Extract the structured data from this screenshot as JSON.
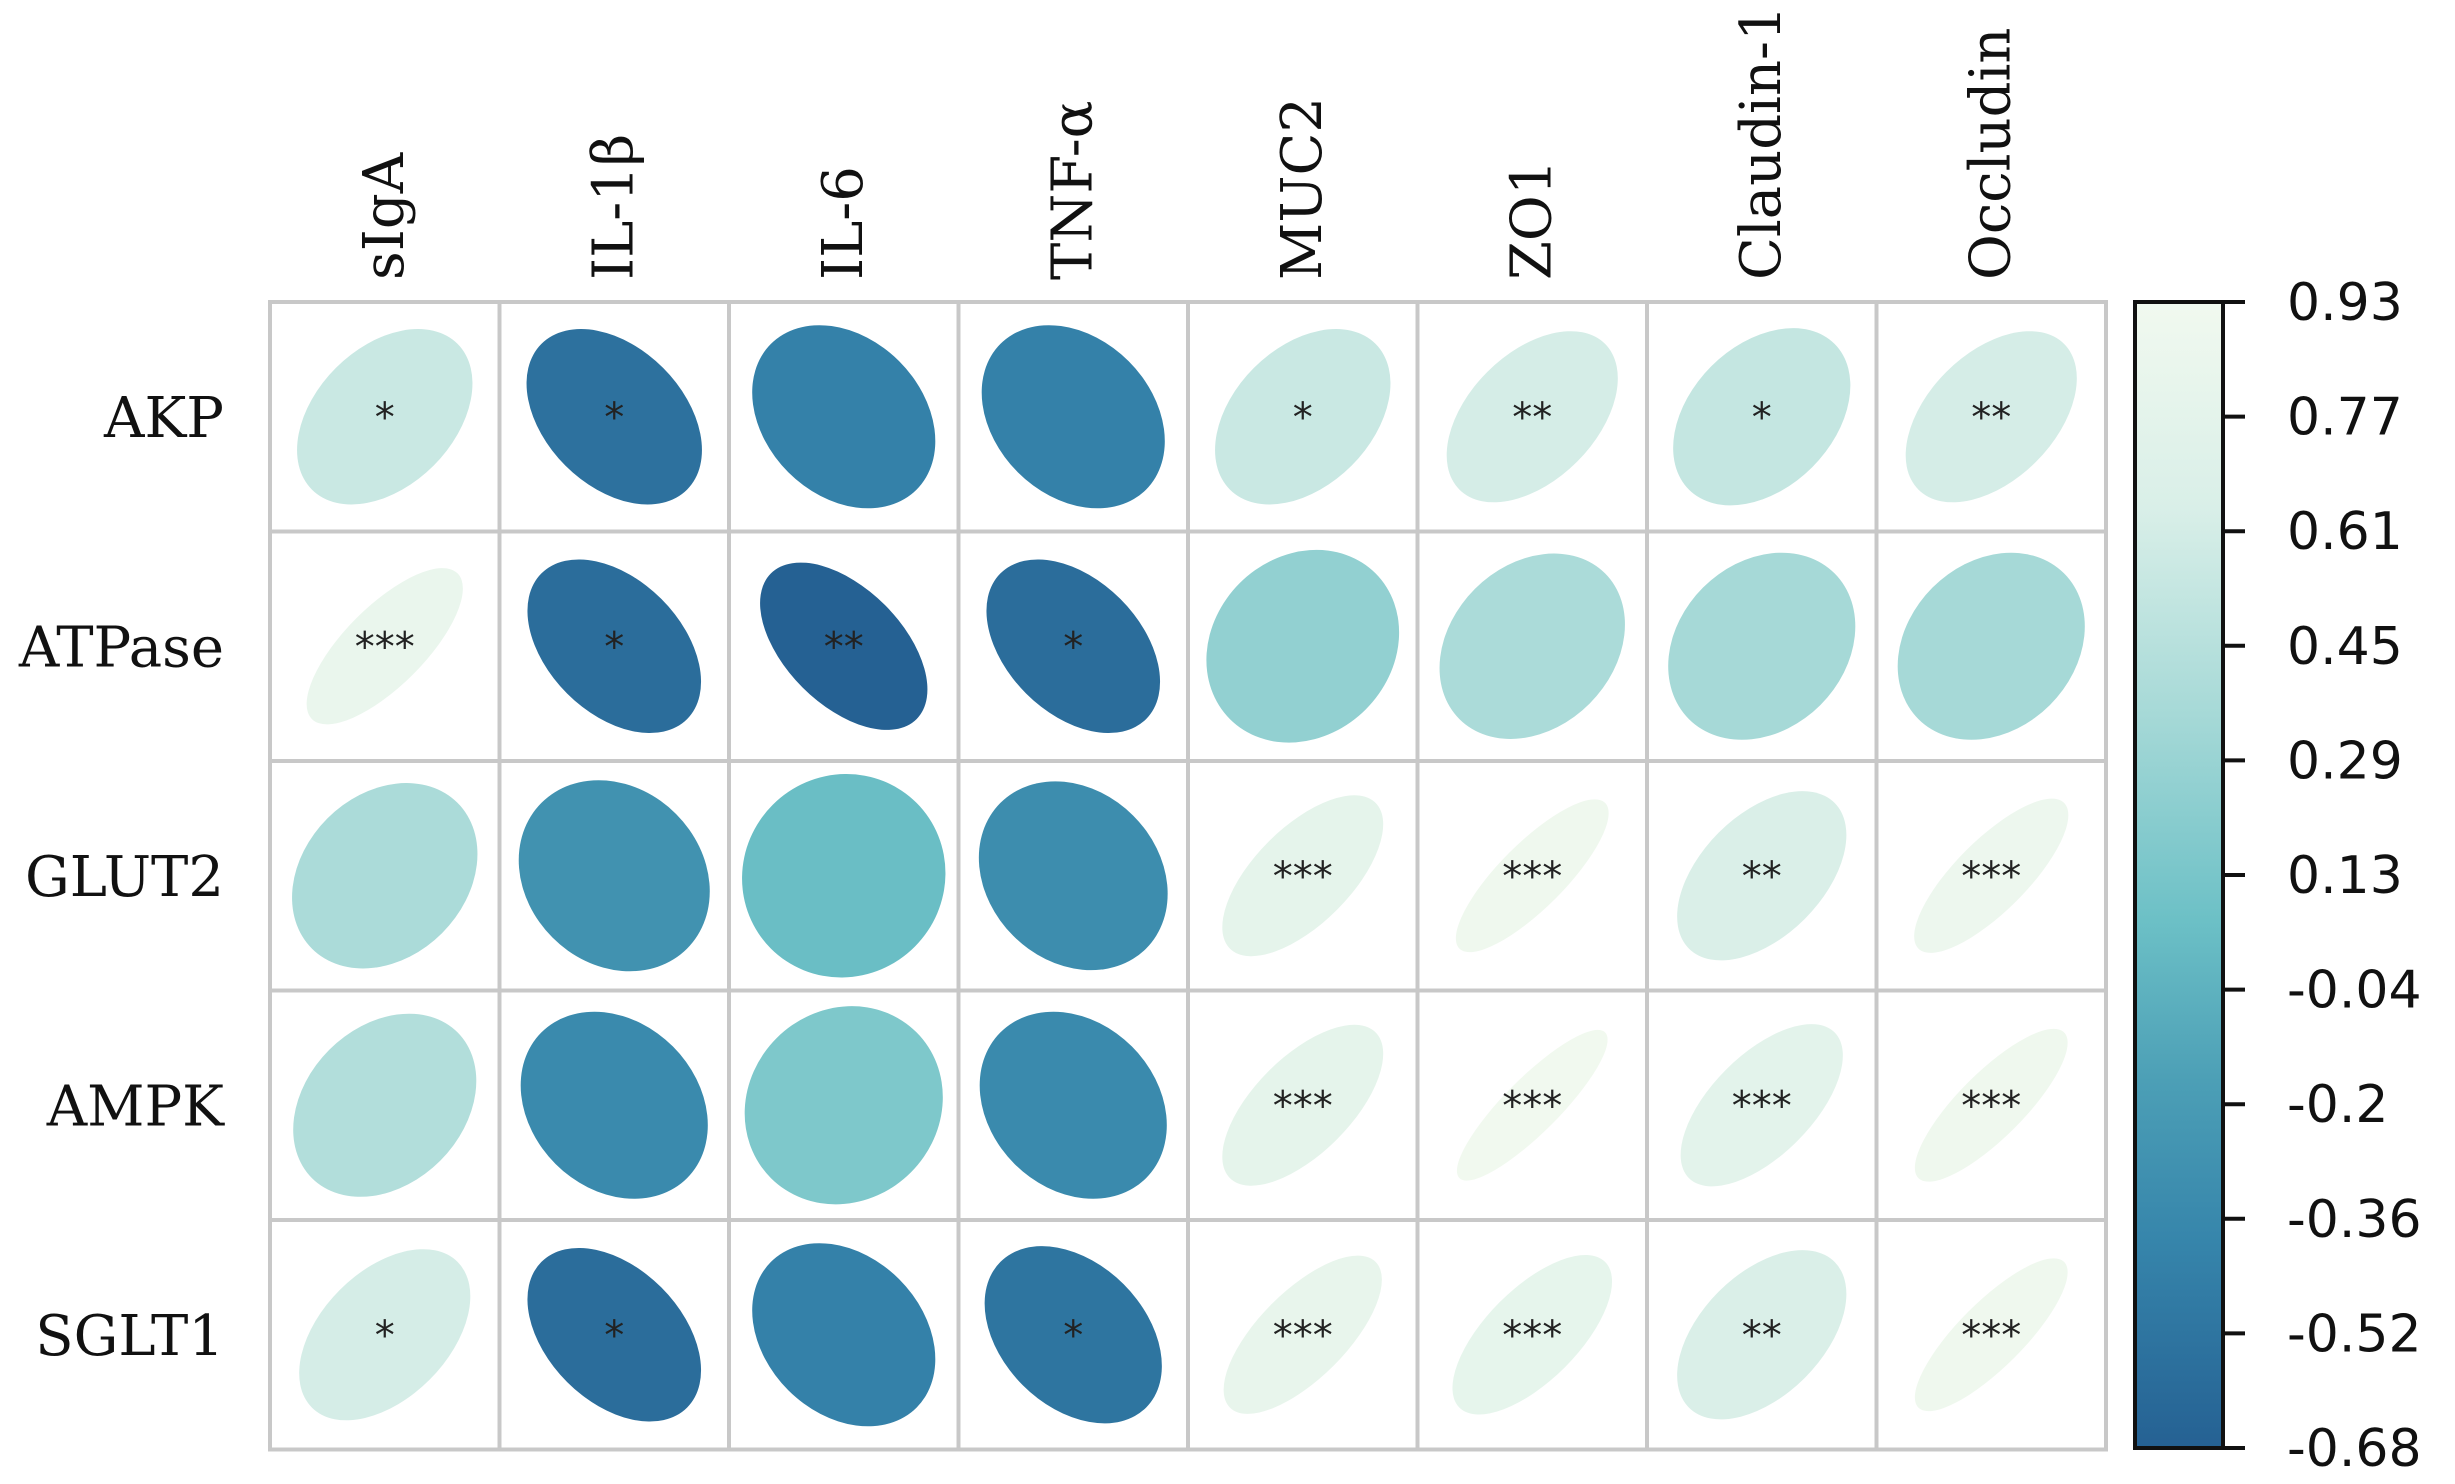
{
  "chart_data": {
    "type": "heatmap",
    "style": "correlation-ellipse",
    "columns": [
      "sIgA",
      "IL-1β",
      "IL-6",
      "TNF-α",
      "MUC2",
      "ZO1",
      "Claudin-1",
      "Occludin"
    ],
    "rows": [
      "AKP",
      "ATPase",
      "GLUT2",
      "AMPK",
      "SGLT1"
    ],
    "values": [
      [
        0.55,
        -0.55,
        -0.42,
        -0.42,
        0.55,
        0.62,
        0.52,
        0.62
      ],
      [
        0.85,
        -0.58,
        -0.68,
        -0.58,
        0.25,
        0.38,
        0.35,
        0.35
      ],
      [
        0.38,
        -0.28,
        0.05,
        -0.32,
        0.78,
        0.9,
        0.65,
        0.88
      ],
      [
        0.42,
        -0.35,
        0.15,
        -0.35,
        0.78,
        0.93,
        0.76,
        0.9
      ],
      [
        0.62,
        -0.58,
        -0.42,
        -0.52,
        0.82,
        0.8,
        0.65,
        0.9
      ]
    ],
    "significance": [
      [
        "*",
        "*",
        "",
        "",
        "*",
        "**",
        "*",
        "**"
      ],
      [
        "***",
        "*",
        "**",
        "*",
        "",
        "",
        "",
        ""
      ],
      [
        "",
        "",
        "",
        "",
        "***",
        "***",
        "**",
        "***"
      ],
      [
        "",
        "",
        "",
        "",
        "***",
        "***",
        "***",
        "***"
      ],
      [
        "*",
        "*",
        "",
        "*",
        "***",
        "***",
        "**",
        "***"
      ]
    ],
    "colorbar": {
      "min": -0.68,
      "max": 0.93,
      "ticks": [
        "0.93",
        "0.77",
        "0.61",
        "0.45",
        "0.29",
        "0.13",
        "-0.04",
        "-0.2",
        "-0.36",
        "-0.52",
        "-0.68"
      ],
      "colors": [
        "#256193",
        "#3685ab",
        "#4c9fb6",
        "#6cc0c6",
        "#a6d9d7",
        "#d9efe8",
        "#f1f9ef"
      ],
      "color_positions": [
        0.0,
        0.18,
        0.32,
        0.46,
        0.64,
        0.82,
        1.0
      ]
    },
    "grid_color": "#c8c8c8",
    "title": "",
    "xlabel": "",
    "ylabel": ""
  }
}
